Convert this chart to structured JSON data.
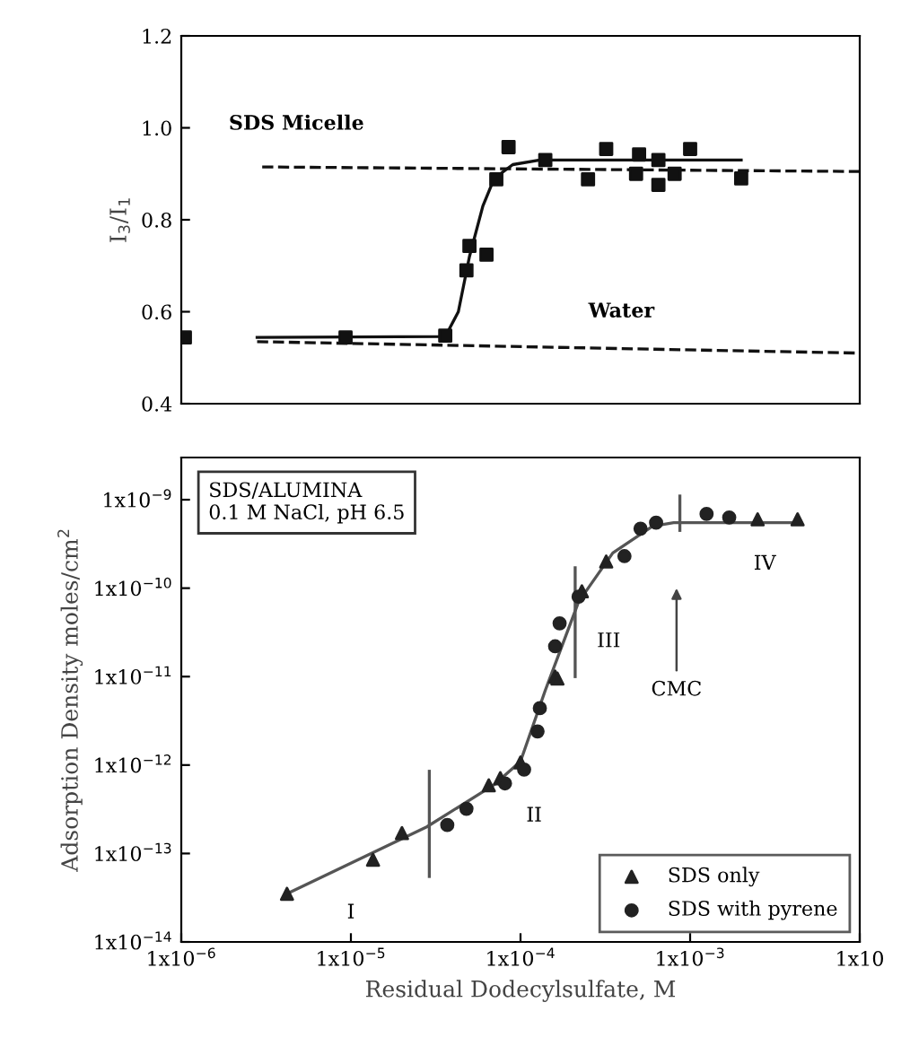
{
  "chart_data": [
    {
      "type": "scatter",
      "ylabel": "I$_{3}$/I$_{1}$",
      "log": "x",
      "xlim": [
        1e-06,
        0.01
      ],
      "ylim": [
        0.4,
        1.2
      ],
      "yticks": [
        {
          "value": 0.4,
          "label": "0.4"
        },
        {
          "value": 0.6,
          "label": "0.6"
        },
        {
          "value": 0.8,
          "label": "0.8"
        },
        {
          "value": 1.0,
          "label": "1.0"
        },
        {
          "value": 1.2,
          "label": "1.2"
        }
      ],
      "tick_labels": "y",
      "grid": false,
      "legend": false,
      "annotations": [
        "SDS Micelle",
        "Water"
      ],
      "series": [
        {
          "marker": "square",
          "color": "#111111",
          "x": [
            1.05e-06,
            9.3e-06,
            3.6e-05,
            4.8e-05,
            5e-05,
            6.3e-05,
            7.2e-05,
            8.5e-05,
            0.00014,
            0.00025,
            0.00032,
            0.00048,
            0.0005,
            0.00065,
            0.00065,
            0.00081,
            0.001,
            0.002
          ],
          "values": [
            0.544,
            0.544,
            0.548,
            0.69,
            0.743,
            0.724,
            0.888,
            0.958,
            0.93,
            0.888,
            0.954,
            0.9,
            0.942,
            0.93,
            0.876,
            0.9,
            0.954,
            0.89
          ]
        },
        {
          "type": "line",
          "line_style": "solid",
          "color": "#111111",
          "x": [
            2.8e-06,
            3.6e-05,
            4.3e-05,
            5e-05,
            6e-05,
            7e-05,
            9e-05,
            0.00013,
            0.002
          ],
          "values": [
            0.544,
            0.546,
            0.6,
            0.72,
            0.83,
            0.89,
            0.92,
            0.93,
            0.93
          ]
        },
        {
          "type": "line",
          "line_style": "dashed",
          "color": "#111111",
          "x": [
            3e-06,
            0.01
          ],
          "values": [
            0.915,
            0.905
          ]
        },
        {
          "type": "line",
          "line_style": "dashed",
          "color": "#111111",
          "x": [
            2.8e-06,
            0.01
          ],
          "values": [
            0.535,
            0.51
          ]
        }
      ]
    },
    {
      "type": "scatter",
      "xlabel": "Residual Dodecylsulfate, M",
      "ylabel": "Adsorption Density moles/cm$^{2}$",
      "log": "xy",
      "xlim": [
        1e-06,
        0.01
      ],
      "ylim": [
        1e-14,
        3e-09
      ],
      "xticks": [
        {
          "value": 1e-06,
          "label": "1x10$^{−6}$"
        },
        {
          "value": 1e-05,
          "label": "1x10$^{−5}$"
        },
        {
          "value": 0.0001,
          "label": "1x10$^{−4}$"
        },
        {
          "value": 0.001,
          "label": "1x10$^{−3}$"
        },
        {
          "value": 0.01,
          "label": "1x10"
        }
      ],
      "yticks": [
        {
          "value": 1e-14,
          "label": "1x10$^{−14}$"
        },
        {
          "value": 1e-13,
          "label": "1x10$^{−13}$"
        },
        {
          "value": 1e-12,
          "label": "1x10$^{−12}$"
        },
        {
          "value": 1e-11,
          "label": "1x10$^{−11}$"
        },
        {
          "value": 1e-10,
          "label": "1x10$^{−10}$"
        },
        {
          "value": 1e-09,
          "label": "1x10$^{−9}$"
        }
      ],
      "grid": false,
      "legend": "bottom right",
      "annotations": [
        "SDS/ALUMINA\n0.1 M NaCl, pH 6.5",
        "I",
        "II",
        "III",
        "IV",
        "CMC"
      ],
      "series": [
        {
          "name": "SDS only",
          "marker": "triangle",
          "color": "#222222",
          "x": [
            4.2e-06,
            1.35e-05,
            2e-05,
            6.5e-05,
            7.6e-05,
            0.0001,
            0.00016,
            0.000165,
            0.00023,
            0.00032,
            0.0025,
            0.0043
          ],
          "values": [
            3.5e-14,
            8.5e-14,
            1.7e-13,
            5.9e-13,
            7.1e-13,
            1.07e-12,
            1e-11,
            9.5e-12,
            9.2e-11,
            2e-10,
            6e-10,
            6e-10
          ]
        },
        {
          "name": "SDS with pyrene",
          "marker": "circle",
          "color": "#222222",
          "x": [
            3.7e-05,
            4.8e-05,
            8.1e-05,
            0.000105,
            0.000126,
            0.00013,
            0.00016,
            0.00017,
            0.00022,
            0.00041,
            0.00051,
            0.00063,
            0.00125,
            0.0017
          ],
          "values": [
            2.1e-13,
            3.2e-13,
            6.2e-13,
            8.9e-13,
            2.4e-12,
            4.4e-12,
            2.2e-11,
            4e-11,
            8e-11,
            2.3e-10,
            4.7e-10,
            5.5e-10,
            6.9e-10,
            6.3e-10
          ]
        },
        {
          "type": "line",
          "line_style": "solid",
          "color": "#555555",
          "x": [
            4.2e-06,
            2.8e-05,
            7e-05,
            0.0001,
            0.00014,
            0.00022,
            0.00035,
            0.0006,
            0.0008,
            0.0045
          ],
          "values": [
            3.5e-14,
            2e-13,
            6e-13,
            1.1e-12,
            7e-12,
            7e-11,
            2.5e-10,
            5e-10,
            5.5e-10,
            5.5e-10
          ]
        },
        {
          "type": "line",
          "line_style": "solid",
          "color": "#555555",
          "x": [
            2.9e-05,
            2.9e-05
          ],
          "values": [
            8.5e-13,
            5.5e-14
          ]
        },
        {
          "type": "line",
          "line_style": "solid",
          "color": "#555555",
          "x": [
            0.00021,
            0.00021
          ],
          "values": [
            1.7e-10,
            1e-11
          ]
        },
        {
          "type": "line",
          "line_style": "solid",
          "color": "#555555",
          "x": [
            0.00087,
            0.00087
          ],
          "values": [
            1.1e-09,
            4.5e-10
          ]
        }
      ]
    }
  ]
}
